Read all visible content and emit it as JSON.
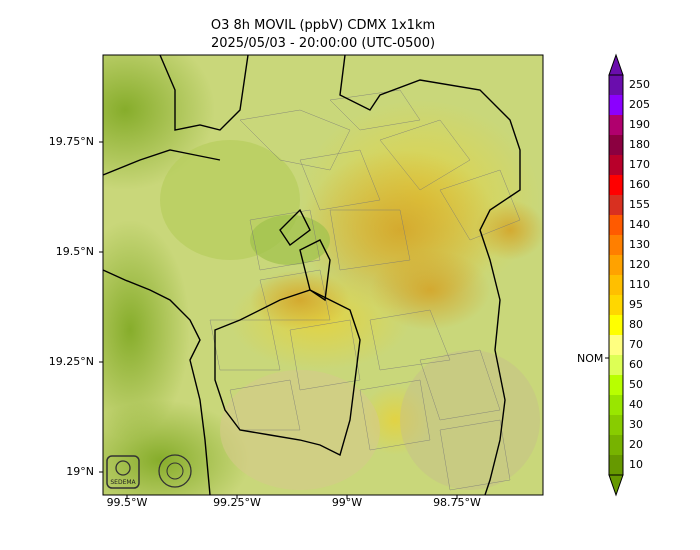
{
  "title_line1": "O3 8h MOVIL (ppbV) CDMX 1x1km",
  "title_line2": "2025/05/03 - 20:00:00 (UTC-0500)",
  "y_ticks": [
    "19.75°N",
    "19.5°N",
    "19.25°N",
    "19°N"
  ],
  "x_ticks": [
    "99.5°W",
    "99.25°W",
    "99°W",
    "98.75°W"
  ],
  "colorbar": {
    "levels": [
      "250",
      "205",
      "190",
      "180",
      "170",
      "160",
      "155",
      "140",
      "130",
      "120",
      "110",
      "95",
      "80",
      "70",
      "60",
      "50",
      "40",
      "30",
      "20",
      "10"
    ],
    "colors": [
      "#6a0dad",
      "#8b00ff",
      "#b0006e",
      "#8b0040",
      "#b8002a",
      "#ff0000",
      "#d83020",
      "#ff5a00",
      "#ff7f00",
      "#ffa200",
      "#ffbf00",
      "#ffd700",
      "#ffff00",
      "#ffff80",
      "#ddff55",
      "#b8ff00",
      "#99e600",
      "#88cc00",
      "#77b300",
      "#669900"
    ],
    "nom_label": "NOM"
  },
  "logos": [
    "SEDEMA",
    "CIUDAD DE MÉXICO"
  ]
}
